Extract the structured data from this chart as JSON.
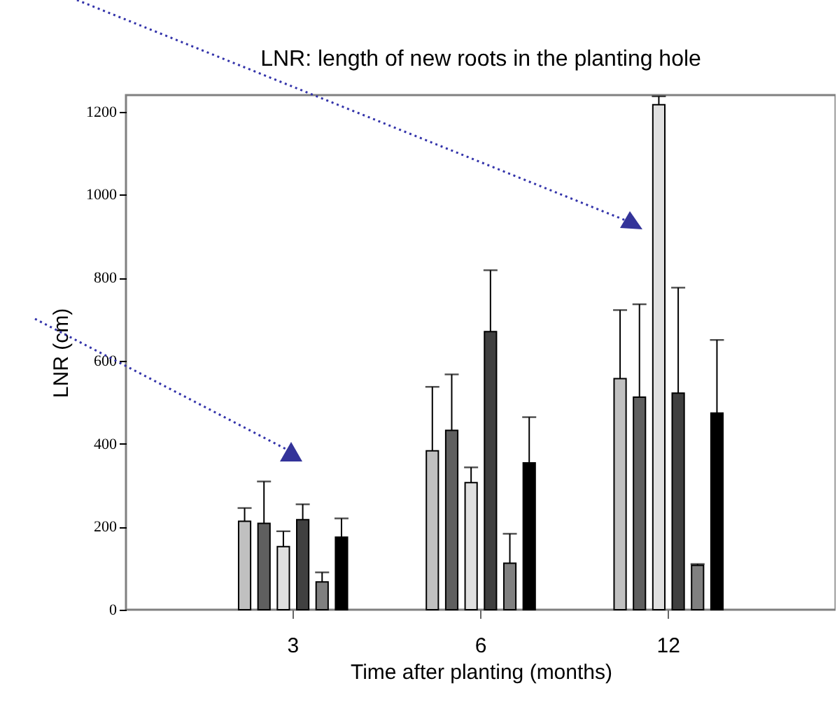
{
  "chart_data": {
    "type": "bar",
    "title": "LNR: length of new roots in the planting hole",
    "xlabel": "Time after planting (months)",
    "ylabel": "LNR (cm)",
    "categories": [
      "3",
      "6",
      "12"
    ],
    "series": [
      {
        "color": "#c0c0c0",
        "values": [
          213,
          383,
          557
        ],
        "errors": [
          32,
          154,
          165
        ]
      },
      {
        "color": "#5f5f5f",
        "values": [
          208,
          432,
          512
        ],
        "errors": [
          101,
          135,
          224
        ]
      },
      {
        "color": "#e0e0e0",
        "values": [
          152,
          306,
          1217
        ],
        "errors": [
          37,
          37,
          20
        ]
      },
      {
        "color": "#404040",
        "values": [
          217,
          670,
          522
        ],
        "errors": [
          37,
          148,
          254
        ]
      },
      {
        "color": "#808080",
        "values": [
          67,
          112,
          107
        ],
        "errors": [
          23,
          71,
          3
        ]
      },
      {
        "color": "#000000",
        "values": [
          175,
          354,
          474
        ],
        "errors": [
          45,
          110,
          176
        ]
      }
    ],
    "ylim": [
      0,
      1240
    ],
    "yticks": [
      0,
      200,
      400,
      600,
      800,
      1000,
      1200
    ]
  }
}
